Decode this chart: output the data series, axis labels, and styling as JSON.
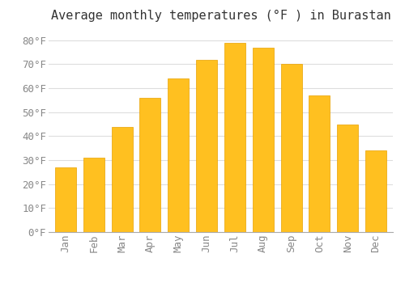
{
  "title": "Average monthly temperatures (°F ) in Burastan",
  "months": [
    "Jan",
    "Feb",
    "Mar",
    "Apr",
    "May",
    "Jun",
    "Jul",
    "Aug",
    "Sep",
    "Oct",
    "Nov",
    "Dec"
  ],
  "values": [
    27,
    31,
    44,
    56,
    64,
    72,
    79,
    77,
    70,
    57,
    45,
    34
  ],
  "bar_color": "#FFC020",
  "bar_edge_color": "#E8A000",
  "background_color": "#FFFFFF",
  "plot_bg_color": "#FFFFFF",
  "grid_color": "#DDDDDD",
  "ylim": [
    0,
    85
  ],
  "yticks": [
    0,
    10,
    20,
    30,
    40,
    50,
    60,
    70,
    80
  ],
  "ylabel_suffix": "°F",
  "title_fontsize": 11,
  "tick_fontsize": 9,
  "font_color": "#888888",
  "title_color": "#333333",
  "bar_width": 0.75
}
